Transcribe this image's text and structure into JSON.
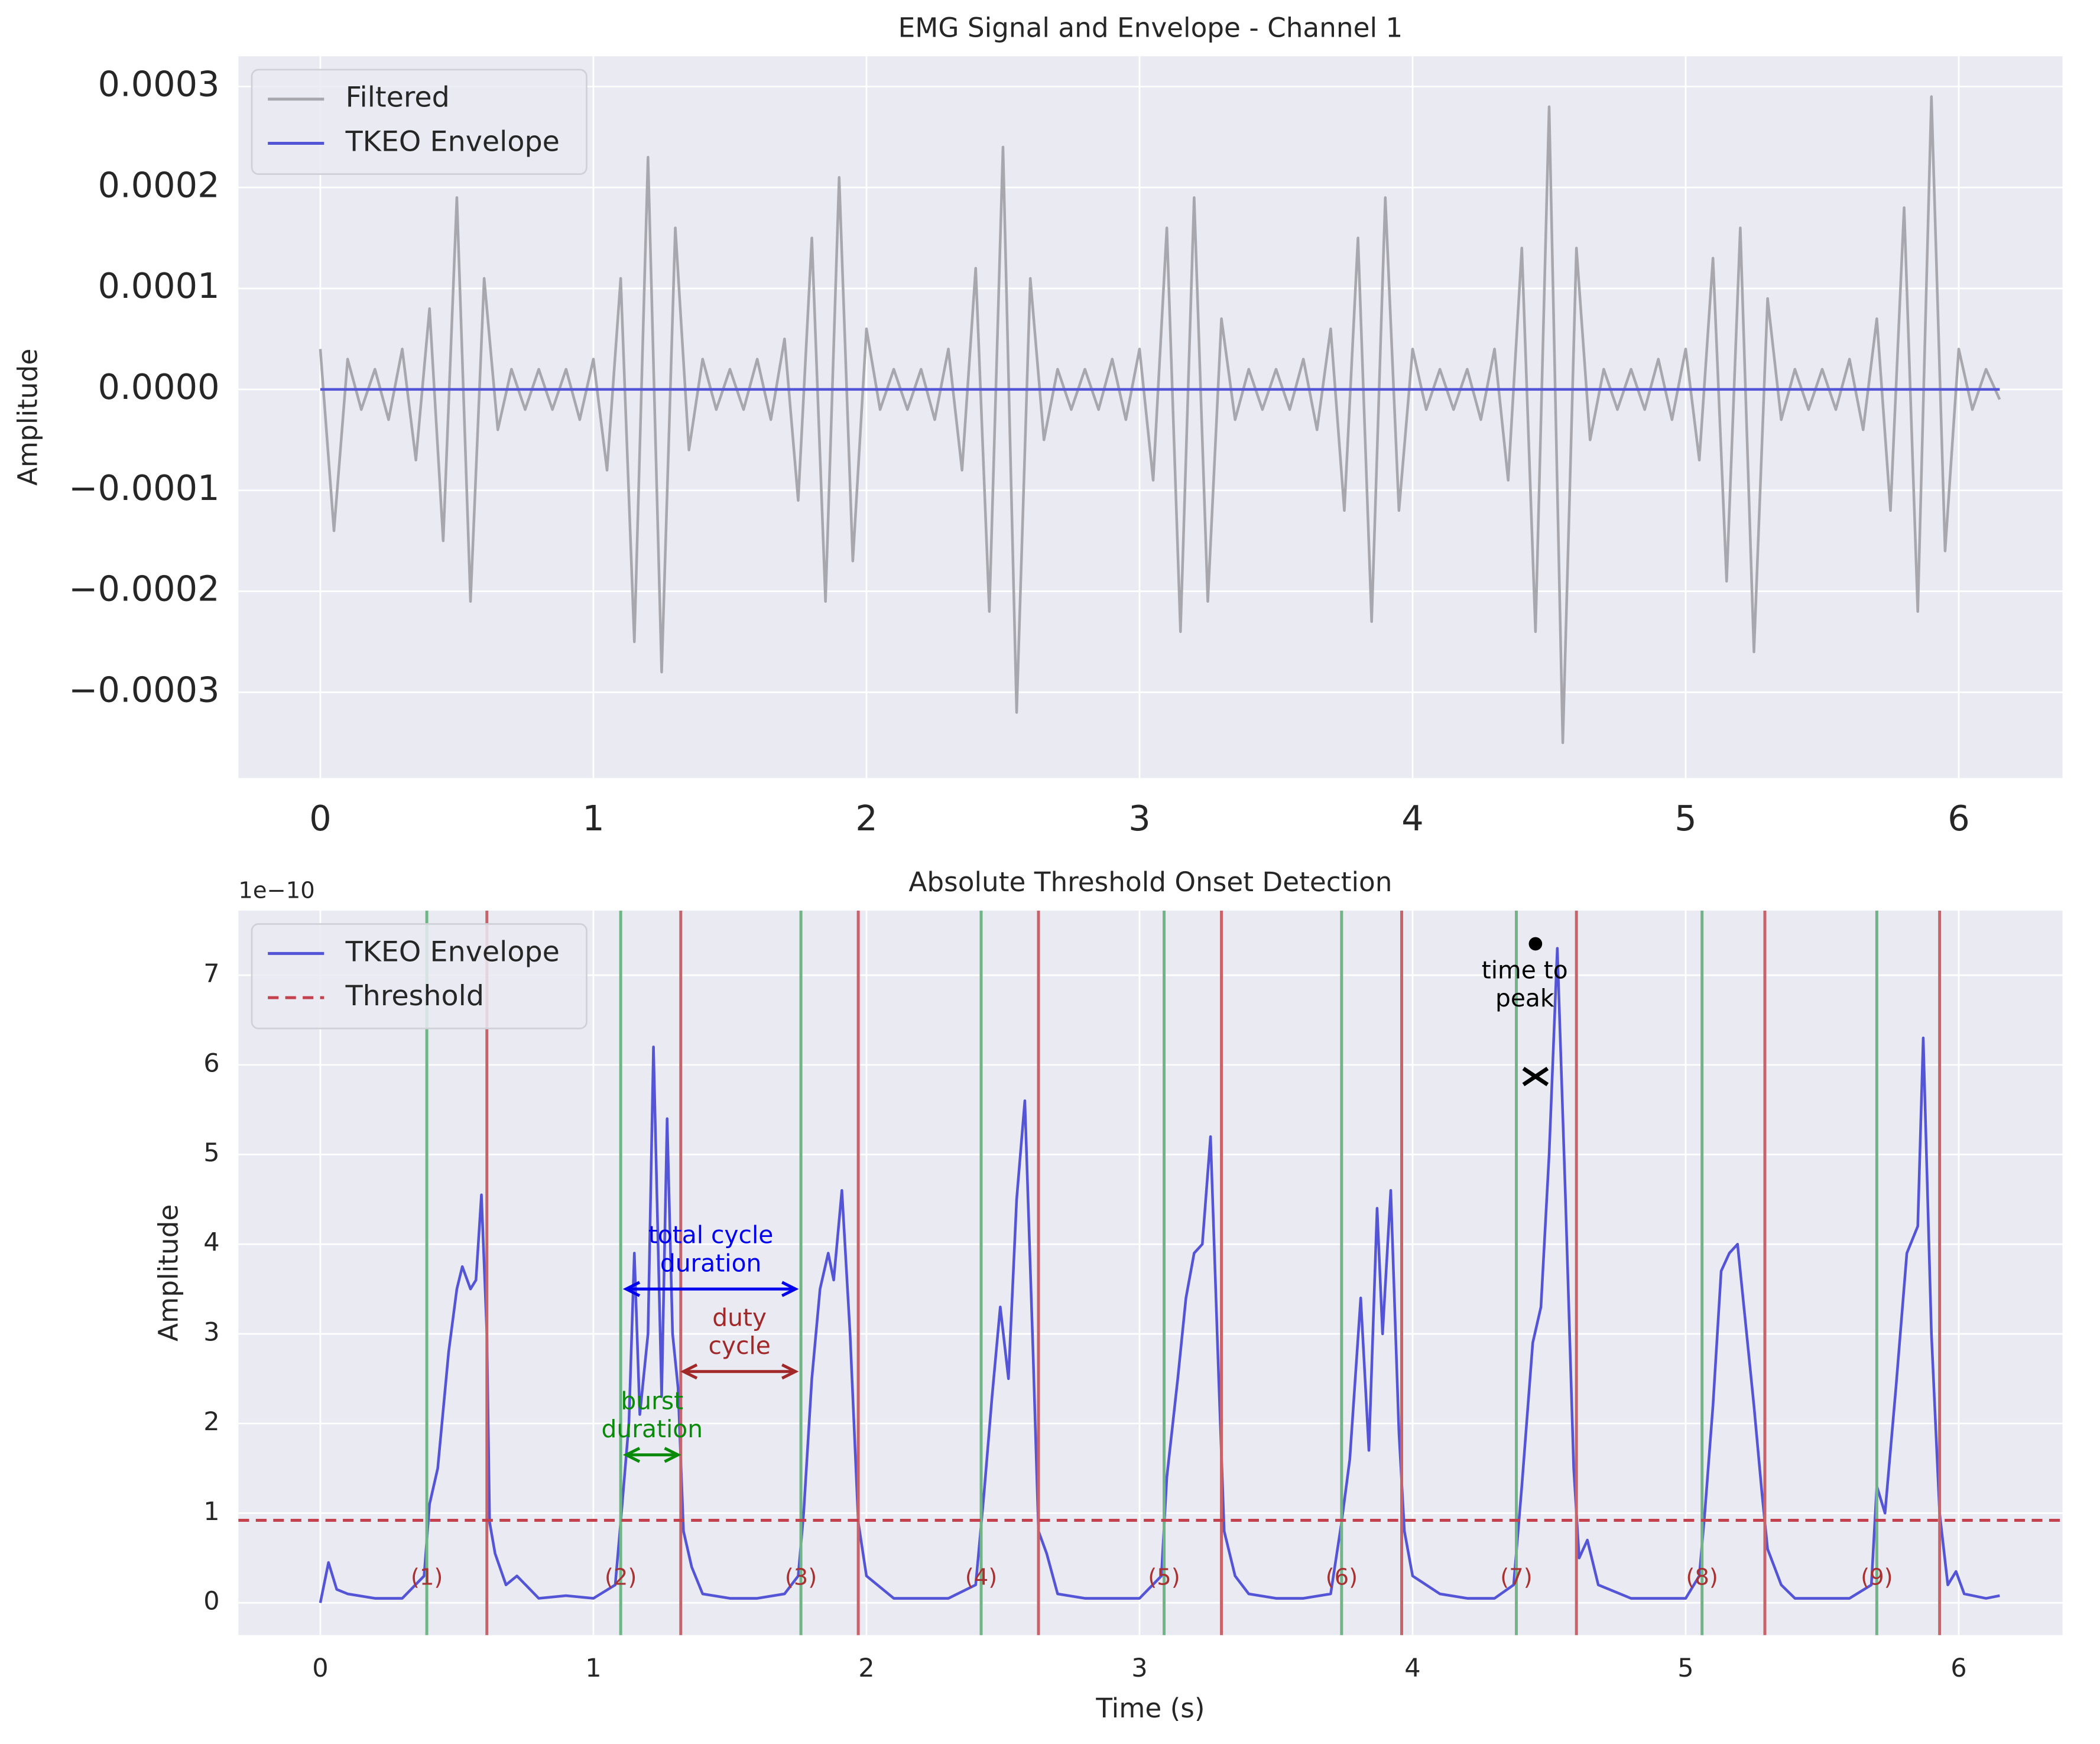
{
  "chart_data": [
    {
      "type": "line",
      "title": "EMG Signal and Envelope - Channel 1",
      "y_label": "Amplitude",
      "xlim": [
        -0.3,
        6.38
      ],
      "ylim": [
        -0.000385,
        0.00033
      ],
      "xticks": [
        0,
        1,
        2,
        3,
        4,
        5,
        6
      ],
      "yticks": [
        {
          "value": -0.0003,
          "label": "−0.0003"
        },
        {
          "value": -0.0002,
          "label": "−0.0002"
        },
        {
          "value": -0.0001,
          "label": "−0.0001"
        },
        {
          "value": 0,
          "label": "0.0000"
        },
        {
          "value": 0.0001,
          "label": "0.0001"
        },
        {
          "value": 0.0002,
          "label": "0.0002"
        },
        {
          "value": 0.0003,
          "label": "0.0003"
        }
      ],
      "grid": true,
      "legend": "upper left",
      "series": [
        {
          "name": "Filtered",
          "color": "#a8a7ad",
          "x": [
            0,
            0.05,
            0.1,
            0.15,
            0.2,
            0.25,
            0.3,
            0.35,
            0.4,
            0.45,
            0.5,
            0.55,
            0.6,
            0.65,
            0.7,
            0.75,
            0.8,
            0.85,
            0.9,
            0.95,
            1,
            1.05,
            1.1,
            1.15,
            1.2,
            1.25,
            1.3,
            1.35,
            1.4,
            1.45,
            1.5,
            1.55,
            1.6,
            1.65,
            1.7,
            1.75,
            1.8,
            1.85,
            1.9,
            1.95,
            2,
            2.05,
            2.1,
            2.15,
            2.2,
            2.25,
            2.3,
            2.35,
            2.4,
            2.45,
            2.5,
            2.55,
            2.6,
            2.65,
            2.7,
            2.75,
            2.8,
            2.85,
            2.9,
            2.95,
            3,
            3.05,
            3.1,
            3.15,
            3.2,
            3.25,
            3.3,
            3.35,
            3.4,
            3.45,
            3.5,
            3.55,
            3.6,
            3.65,
            3.7,
            3.75,
            3.8,
            3.85,
            3.9,
            3.95,
            4,
            4.05,
            4.1,
            4.15,
            4.2,
            4.25,
            4.3,
            4.35,
            4.4,
            4.45,
            4.5,
            4.55,
            4.6,
            4.65,
            4.7,
            4.75,
            4.8,
            4.85,
            4.9,
            4.95,
            5,
            5.05,
            5.1,
            5.15,
            5.2,
            5.25,
            5.3,
            5.35,
            5.4,
            5.45,
            5.5,
            5.55,
            5.6,
            5.65,
            5.7,
            5.75,
            5.8,
            5.85,
            5.9,
            5.95,
            6,
            6.05,
            6.1,
            6.15
          ],
          "values": [
            4e-05,
            -0.00014,
            3e-05,
            -2e-05,
            2e-05,
            -3e-05,
            4e-05,
            -7e-05,
            8e-05,
            -0.00015,
            0.00019,
            -0.00021,
            0.00011,
            -4e-05,
            2e-05,
            -2e-05,
            2e-05,
            -2e-05,
            2e-05,
            -3e-05,
            3e-05,
            -8e-05,
            0.00011,
            -0.00025,
            0.00023,
            -0.00028,
            0.00016,
            -6e-05,
            3e-05,
            -2e-05,
            2e-05,
            -2e-05,
            3e-05,
            -3e-05,
            5e-05,
            -0.00011,
            0.00015,
            -0.00021,
            0.00021,
            -0.00017,
            6e-05,
            -2e-05,
            2e-05,
            -2e-05,
            2e-05,
            -3e-05,
            4e-05,
            -8e-05,
            0.00012,
            -0.00022,
            0.00024,
            -0.00032,
            0.00011,
            -5e-05,
            2e-05,
            -2e-05,
            2e-05,
            -2e-05,
            3e-05,
            -3e-05,
            4e-05,
            -9e-05,
            0.00016,
            -0.00024,
            0.00019,
            -0.00021,
            7e-05,
            -3e-05,
            2e-05,
            -2e-05,
            2e-05,
            -2e-05,
            3e-05,
            -4e-05,
            6e-05,
            -0.00012,
            0.00015,
            -0.00023,
            0.00019,
            -0.00012,
            4e-05,
            -2e-05,
            2e-05,
            -2e-05,
            2e-05,
            -3e-05,
            4e-05,
            -9e-05,
            0.00014,
            -0.00024,
            0.00028,
            -0.00035,
            0.00014,
            -5e-05,
            2e-05,
            -2e-05,
            2e-05,
            -2e-05,
            3e-05,
            -3e-05,
            4e-05,
            -7e-05,
            0.00013,
            -0.00019,
            0.00016,
            -0.00026,
            9e-05,
            -3e-05,
            2e-05,
            -2e-05,
            2e-05,
            -2e-05,
            3e-05,
            -4e-05,
            7e-05,
            -0.00012,
            0.00018,
            -0.00022,
            0.00029,
            -0.00016,
            4e-05,
            -2e-05,
            2e-05,
            -1e-05
          ]
        },
        {
          "name": "TKEO Envelope",
          "color": "#5454d6",
          "x": [
            0,
            6.15
          ],
          "values": [
            0,
            0
          ]
        }
      ]
    },
    {
      "type": "line",
      "title": "Absolute Threshold Onset Detection",
      "x_label": "Time (s)",
      "y_label": "Amplitude",
      "y_offset_label": "1e−10",
      "xlim": [
        -0.3,
        6.38
      ],
      "ylim": [
        -0.36,
        7.72
      ],
      "xticks": [
        0,
        1,
        2,
        3,
        4,
        5,
        6
      ],
      "yticks": [
        0,
        1,
        2,
        3,
        4,
        5,
        6,
        7
      ],
      "grid": true,
      "legend": "upper left",
      "series": [
        {
          "name": "TKEO Envelope",
          "color": "#5454d6",
          "x": [
            0,
            0.03,
            0.06,
            0.1,
            0.2,
            0.3,
            0.38,
            0.4,
            0.43,
            0.47,
            0.5,
            0.52,
            0.55,
            0.57,
            0.59,
            0.61,
            0.62,
            0.64,
            0.68,
            0.72,
            0.8,
            0.9,
            1,
            1.08,
            1.1,
            1.13,
            1.15,
            1.17,
            1.2,
            1.22,
            1.25,
            1.27,
            1.29,
            1.31,
            1.33,
            1.36,
            1.4,
            1.5,
            1.6,
            1.7,
            1.75,
            1.77,
            1.8,
            1.83,
            1.86,
            1.88,
            1.91,
            1.94,
            1.97,
            2,
            2.1,
            2.2,
            2.3,
            2.4,
            2.43,
            2.46,
            2.49,
            2.52,
            2.55,
            2.58,
            2.61,
            2.63,
            2.66,
            2.7,
            2.8,
            2.9,
            3,
            3.08,
            3.1,
            3.14,
            3.17,
            3.2,
            3.23,
            3.26,
            3.29,
            3.31,
            3.35,
            3.4,
            3.5,
            3.6,
            3.7,
            3.74,
            3.77,
            3.81,
            3.84,
            3.87,
            3.89,
            3.92,
            3.95,
            3.97,
            4,
            4.1,
            4.2,
            4.3,
            4.37,
            4.4,
            4.44,
            4.47,
            4.5,
            4.53,
            4.56,
            4.59,
            4.61,
            4.64,
            4.68,
            4.8,
            4.9,
            5,
            5.05,
            5.07,
            5.1,
            5.13,
            5.16,
            5.19,
            5.22,
            5.25,
            5.28,
            5.3,
            5.35,
            5.4,
            5.5,
            5.6,
            5.68,
            5.7,
            5.73,
            5.77,
            5.81,
            5.85,
            5.87,
            5.9,
            5.93,
            5.96,
            5.99,
            6.02,
            6.1,
            6.15
          ],
          "values": [
            0,
            0.45,
            0.15,
            0.1,
            0.05,
            0.05,
            0.3,
            1.1,
            1.5,
            2.8,
            3.5,
            3.75,
            3.5,
            3.6,
            4.55,
            3,
            0.9,
            0.55,
            0.2,
            0.3,
            0.05,
            0.08,
            0.05,
            0.2,
            0.9,
            2,
            3.9,
            2.1,
            3,
            6.2,
            2.3,
            5.4,
            3,
            2.4,
            0.8,
            0.4,
            0.1,
            0.05,
            0.05,
            0.1,
            0.3,
            1,
            2.5,
            3.5,
            3.9,
            3.6,
            4.6,
            3,
            0.9,
            0.3,
            0.05,
            0.05,
            0.05,
            0.2,
            1.2,
            2.3,
            3.3,
            2.5,
            4.5,
            5.6,
            2.8,
            0.8,
            0.55,
            0.1,
            0.05,
            0.05,
            0.05,
            0.3,
            1.4,
            2.5,
            3.4,
            3.9,
            4,
            5.2,
            2.5,
            0.8,
            0.3,
            0.1,
            0.05,
            0.05,
            0.1,
            0.9,
            1.6,
            3.4,
            1.7,
            4.4,
            3,
            4.6,
            1.9,
            0.8,
            0.3,
            0.1,
            0.05,
            0.05,
            0.2,
            1.3,
            2.9,
            3.3,
            5,
            7.3,
            4.5,
            1.5,
            0.5,
            0.7,
            0.2,
            0.05,
            0.05,
            0.05,
            0.3,
            1,
            2.2,
            3.7,
            3.9,
            4,
            3.1,
            2.2,
            1.2,
            0.6,
            0.2,
            0.05,
            0.05,
            0.05,
            0.2,
            1.3,
            1,
            2.4,
            3.9,
            4.2,
            6.3,
            3,
            1,
            0.2,
            0.35,
            0.1,
            0.05,
            0.08
          ]
        }
      ],
      "threshold": {
        "name": "Threshold",
        "value": 0.92,
        "color": "#c4424e"
      },
      "onsets": {
        "color": "#6fb585",
        "values": [
          0.39,
          1.1,
          1.76,
          2.42,
          3.09,
          3.74,
          4.38,
          5.06,
          5.7
        ]
      },
      "offsets": {
        "color": "#c8636a",
        "values": [
          0.61,
          1.32,
          1.97,
          2.63,
          3.3,
          3.96,
          4.6,
          5.29,
          5.93
        ]
      },
      "cycle_labels": {
        "color": "#a83232",
        "y": 0.27,
        "labels": [
          "(1)",
          "(2)",
          "(3)",
          "(4)",
          "(5)",
          "(6)",
          "(7)",
          "(8)",
          "(9)"
        ]
      },
      "annotations": [
        {
          "text": [
            "total cycle",
            "duration"
          ],
          "color": "#0000ee",
          "x": [
            1.12,
            1.74
          ],
          "y": 3.5
        },
        {
          "text": [
            "duty",
            "cycle"
          ],
          "color": "#a02828",
          "x": [
            1.33,
            1.74
          ],
          "y": 2.58
        },
        {
          "text": [
            "burst",
            "duration"
          ],
          "color": "#0a8a0a",
          "x": [
            1.12,
            1.31
          ],
          "y": 1.65
        },
        {
          "text": [
            "time to",
            "peak"
          ],
          "color": "#000000",
          "x": [
            4.45
          ],
          "y": 7.35
        }
      ],
      "peak_marker": {
        "x": 4.45,
        "y": 5.87
      }
    }
  ]
}
